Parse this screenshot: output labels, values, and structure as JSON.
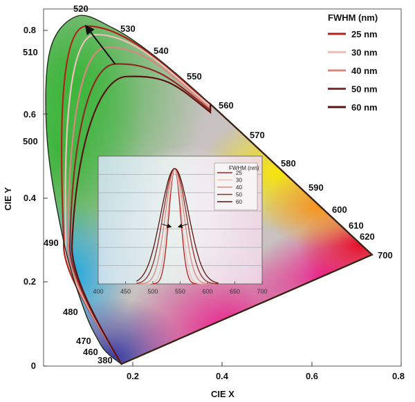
{
  "chart_data": [
    {
      "type": "line",
      "xlabel": "CIE X",
      "ylabel": "CIE Y",
      "xlim": [
        0,
        0.8
      ],
      "ylim": [
        0,
        0.85
      ],
      "x_ticks": [
        0.2,
        0.4,
        0.6,
        0.8
      ],
      "y_ticks": [
        0,
        0.2,
        0.4,
        0.6,
        0.8
      ],
      "x_tick_labels": [
        "0.2",
        "0.4",
        "0.6",
        "0.8"
      ],
      "y_tick_labels": [
        "0",
        "0.2",
        "0.4",
        "0.6",
        "0.8"
      ],
      "legend": {
        "title": "FWHM (nm)",
        "placement": "top-right",
        "entries": [
          "25 nm",
          "30 nm",
          "40 nm",
          "50 nm",
          "60 nm"
        ]
      },
      "spectral_locus": {
        "wavelengths": [
          "380",
          "460",
          "470",
          "480",
          "490",
          "500",
          "510",
          "520",
          "530",
          "540",
          "550",
          "560",
          "570",
          "580",
          "590",
          "600",
          "610",
          "620",
          "700"
        ],
        "points": [
          [
            0.1741,
            0.005
          ],
          [
            0.144,
            0.0297
          ],
          [
            0.1241,
            0.0578
          ],
          [
            0.0913,
            0.1327
          ],
          [
            0.0454,
            0.295
          ],
          [
            0.0082,
            0.5384
          ],
          [
            0.0139,
            0.7502
          ],
          [
            0.0743,
            0.8338
          ],
          [
            0.1547,
            0.8059
          ],
          [
            0.2296,
            0.7543
          ],
          [
            0.3016,
            0.6923
          ],
          [
            0.3731,
            0.6245
          ],
          [
            0.4441,
            0.5547
          ],
          [
            0.5125,
            0.4866
          ],
          [
            0.5752,
            0.4242
          ],
          [
            0.627,
            0.3725
          ],
          [
            0.6658,
            0.334
          ],
          [
            0.6915,
            0.3083
          ],
          [
            0.7347,
            0.2653
          ]
        ]
      },
      "series": [
        {
          "name": "25 nm",
          "color": "#b3201c",
          "apex": [
            0.095,
            0.81
          ]
        },
        {
          "name": "30 nm",
          "color": "#ecc0bb",
          "apex": [
            0.115,
            0.79
          ]
        },
        {
          "name": "40 nm",
          "color": "#d8877f",
          "apex": [
            0.14,
            0.76
          ]
        },
        {
          "name": "50 nm",
          "color": "#8f2a24",
          "apex": [
            0.16,
            0.72
          ]
        },
        {
          "name": "60 nm",
          "color": "#5a1210",
          "apex": [
            0.185,
            0.69
          ]
        }
      ],
      "annotations": [
        {
          "type": "arrow",
          "from": [
            0.16,
            0.72
          ],
          "to": [
            0.095,
            0.81
          ]
        }
      ]
    },
    {
      "type": "line",
      "xlim": [
        400,
        700
      ],
      "x_ticks": [
        400,
        450,
        500,
        550,
        600,
        650,
        700
      ],
      "x_tick_labels": [
        "400",
        "450",
        "500",
        "550",
        "600",
        "650",
        "700"
      ],
      "legend": {
        "title": "FWHM (nm)",
        "placement": "top-right",
        "entries": [
          "25",
          "30",
          "40",
          "50",
          "60"
        ]
      },
      "series": [
        {
          "name": "25",
          "peak_nm": 540,
          "fwhm_nm": 25,
          "color": "#b3201c"
        },
        {
          "name": "30",
          "peak_nm": 540,
          "fwhm_nm": 30,
          "color": "#ecc0bb"
        },
        {
          "name": "40",
          "peak_nm": 540,
          "fwhm_nm": 40,
          "color": "#d8877f"
        },
        {
          "name": "50",
          "peak_nm": 540,
          "fwhm_nm": 50,
          "color": "#8f2a24"
        },
        {
          "name": "60",
          "peak_nm": 540,
          "fwhm_nm": 60,
          "color": "#5a1210"
        }
      ]
    }
  ]
}
